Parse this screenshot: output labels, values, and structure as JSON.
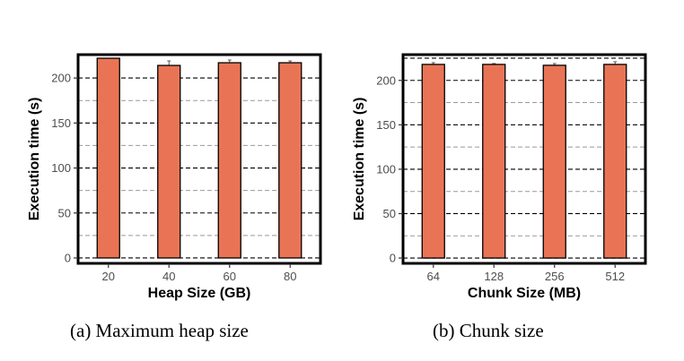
{
  "chart_data": [
    {
      "type": "bar",
      "categories": [
        "20",
        "40",
        "60",
        "80"
      ],
      "values": [
        222,
        214,
        217,
        217
      ],
      "errors": [
        0,
        5,
        3,
        2
      ],
      "xlabel": "Heap Size (GB)",
      "ylabel": "Execution time (s)",
      "ylim": [
        -6,
        226
      ],
      "yticks": [
        0,
        50,
        100,
        150,
        200
      ],
      "grid_major": [
        0,
        50,
        100,
        150,
        200
      ],
      "grid_minor": [
        25,
        75,
        125,
        175
      ],
      "top_line": 225,
      "bar_color": "#e97455",
      "caption": "(a) Maximum heap size"
    },
    {
      "type": "bar",
      "categories": [
        "64",
        "128",
        "256",
        "512"
      ],
      "values": [
        218,
        218,
        217,
        218
      ],
      "errors": [
        2,
        1,
        2,
        3
      ],
      "xlabel": "Chunk Size (MB)",
      "ylabel": "Execution time (s)",
      "ylim": [
        -6,
        229
      ],
      "yticks": [
        0,
        50,
        100,
        150,
        200
      ],
      "grid_major": [
        0,
        50,
        100,
        150,
        200
      ],
      "grid_minor": [
        25,
        75,
        125,
        175
      ],
      "top_line": 225,
      "bar_color": "#e97455",
      "caption": "(b) Chunk size"
    }
  ]
}
